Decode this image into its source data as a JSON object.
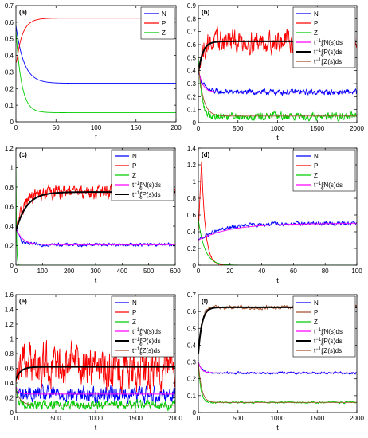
{
  "chart_data": [
    {
      "panel": "(a)",
      "type": "line",
      "xlabel": "t",
      "xlim": [
        0,
        200
      ],
      "ylim": [
        0,
        0.7
      ],
      "xticks": [
        0,
        50,
        100,
        150,
        200
      ],
      "yticks": [
        0,
        0.1,
        0.2,
        0.3,
        0.4,
        0.5,
        0.6,
        0.7
      ],
      "legend_position": "top-right",
      "series": [
        {
          "name": "N",
          "color": "#0000ff",
          "style": "smooth",
          "start": 0.58,
          "end": 0.232,
          "tau": 10
        },
        {
          "name": "P",
          "color": "#ff0000",
          "style": "smooth",
          "start": 0.36,
          "end": 0.625,
          "tau": 8,
          "dip_end": 3
        },
        {
          "name": "Z",
          "color": "#00cc00",
          "style": "smooth",
          "start": 0.55,
          "end": 0.055,
          "tau": 7
        }
      ]
    },
    {
      "panel": "(b)",
      "type": "line",
      "xlabel": "t",
      "xlim": [
        0,
        2000
      ],
      "ylim": [
        0,
        0.9
      ],
      "xticks": [
        0,
        500,
        1000,
        1500,
        2000
      ],
      "yticks": [
        0,
        0.1,
        0.2,
        0.3,
        0.4,
        0.5,
        0.6,
        0.7,
        0.8,
        0.9
      ],
      "legend_position": "top-right",
      "series": [
        {
          "name": "N",
          "color": "#0000ff",
          "style": "noisy",
          "start": 0.4,
          "end": 0.235,
          "tau": 60,
          "noise": 0.018
        },
        {
          "name": "P",
          "color": "#ff0000",
          "style": "noisy",
          "start": 0.4,
          "end": 0.625,
          "tau": 50,
          "noise": 0.07
        },
        {
          "name": "Z",
          "color": "#00cc00",
          "style": "noisy",
          "start": 0.5,
          "end": 0.05,
          "tau": 40,
          "noise": 0.025
        },
        {
          "name": "t^{-1}∫_0^t N(s)ds",
          "color": "#ff00ff",
          "style": "smooth",
          "start": 0.42,
          "end": 0.235,
          "tau": 50
        },
        {
          "name": "t^{-1}∫_0^t P(s)ds",
          "color": "#000000",
          "style": "smooth",
          "start": 0.38,
          "end": 0.625,
          "tau": 55,
          "width": 2
        },
        {
          "name": "t^{-1}∫_0^t Z(s)ds",
          "color": "#a0522d",
          "style": "smooth",
          "start": 0.45,
          "end": 0.05,
          "tau": 60
        }
      ]
    },
    {
      "panel": "(c)",
      "type": "line",
      "xlabel": "t",
      "xlim": [
        0,
        600
      ],
      "ylim": [
        0,
        1.2
      ],
      "xticks": [
        0,
        100,
        200,
        300,
        400,
        500,
        600
      ],
      "yticks": [
        0,
        0.2,
        0.4,
        0.6,
        0.8,
        1,
        1.2
      ],
      "legend_position": "top-right",
      "series": [
        {
          "name": "N",
          "color": "#0000ff",
          "style": "noisy",
          "start": 0.4,
          "end": 0.21,
          "tau": 15,
          "noise": 0.015
        },
        {
          "name": "P",
          "color": "#ff0000",
          "style": "noisy",
          "start": 0.35,
          "end": 0.75,
          "tau": 30,
          "noise": 0.06
        },
        {
          "name": "Z",
          "color": "#00cc00",
          "style": "smooth",
          "start": 1.05,
          "end": 0.0,
          "tau": 2
        },
        {
          "name": "t^{-1}∫_0^t N(s)ds",
          "color": "#ff00ff",
          "style": "smooth",
          "start": 0.38,
          "end": 0.21,
          "tau": 25
        },
        {
          "name": "t^{-1}∫_0^t P(s)ds",
          "color": "#000000",
          "style": "smooth",
          "start": 0.35,
          "end": 0.75,
          "tau": 40,
          "width": 2
        }
      ]
    },
    {
      "panel": "(d)",
      "type": "line",
      "xlabel": "t",
      "xlim": [
        0,
        100
      ],
      "ylim": [
        0,
        1.4
      ],
      "xticks": [
        0,
        20,
        40,
        60,
        80,
        100
      ],
      "yticks": [
        0,
        0.2,
        0.4,
        0.6,
        0.8,
        1,
        1.2,
        1.4
      ],
      "legend_position": "top-right",
      "series": [
        {
          "name": "N",
          "color": "#0000ff",
          "style": "noisy",
          "start": 0.3,
          "end": 0.5,
          "tau": 15,
          "noise": 0.02
        },
        {
          "name": "P",
          "color": "#ff0000",
          "style": "spike",
          "start": 0.4,
          "end": 0.0,
          "tau": 2,
          "peak": 1.25
        },
        {
          "name": "Z",
          "color": "#00cc00",
          "style": "smooth",
          "start": 0.55,
          "end": 0.0,
          "tau": 4
        },
        {
          "name": "t^{-1}∫_0^t N(s)ds",
          "color": "#ff00ff",
          "style": "smooth",
          "start": 0.3,
          "end": 0.5,
          "tau": 20
        }
      ]
    },
    {
      "panel": "(e)",
      "type": "line",
      "xlabel": "t",
      "xlim": [
        0,
        2000
      ],
      "ylim": [
        0,
        1.6
      ],
      "xticks": [
        0,
        500,
        1000,
        1500,
        2000
      ],
      "yticks": [
        0,
        0.2,
        0.4,
        0.6,
        0.8,
        1,
        1.2,
        1.4,
        1.6
      ],
      "legend_position": "top-right",
      "series": [
        {
          "name": "N",
          "color": "#0000ff",
          "style": "noisy",
          "start": 0.3,
          "end": 0.25,
          "tau": 20,
          "noise": 0.09
        },
        {
          "name": "P",
          "color": "#ff0000",
          "style": "noisy",
          "start": 0.4,
          "end": 0.62,
          "tau": 20,
          "noise": 0.25
        },
        {
          "name": "Z",
          "color": "#00cc00",
          "style": "noisy",
          "start": 0.4,
          "end": 0.1,
          "tau": 20,
          "noise": 0.05
        },
        {
          "name": "t^{-1}∫_0^t N(s)ds",
          "color": "#ff00ff",
          "style": "smooth",
          "start": 0.35,
          "end": 0.25,
          "tau": 40
        },
        {
          "name": "t^{-1}∫_0^t P(s)ds",
          "color": "#000000",
          "style": "smooth",
          "start": 0.45,
          "end": 0.62,
          "tau": 60,
          "width": 2
        },
        {
          "name": "t^{-1}∫_0^t Z(s)ds",
          "color": "#a0522d",
          "style": "smooth",
          "start": 0.3,
          "end": 0.1,
          "tau": 60
        }
      ]
    },
    {
      "panel": "(f)",
      "type": "line",
      "xlabel": "t",
      "xlim": [
        0,
        2000
      ],
      "ylim": [
        0,
        0.7
      ],
      "xticks": [
        0,
        500,
        1000,
        1500,
        2000
      ],
      "yticks": [
        0,
        0.1,
        0.2,
        0.3,
        0.4,
        0.5,
        0.6,
        0.7
      ],
      "legend_position": "top-right",
      "series": [
        {
          "name": "N",
          "color": "#0000ff",
          "style": "noisy",
          "start": 0.3,
          "end": 0.235,
          "tau": 40,
          "noise": 0.006
        },
        {
          "name": "P",
          "color": "#a0522d",
          "style": "noisy",
          "start": 0.35,
          "end": 0.625,
          "tau": 40,
          "noise": 0.01
        },
        {
          "name": "Z",
          "color": "#00cc00",
          "style": "noisy",
          "start": 0.3,
          "end": 0.06,
          "tau": 30,
          "noise": 0.005
        },
        {
          "name": "t^{-1}∫_0^t N(s)ds",
          "color": "#ff00ff",
          "style": "smooth",
          "start": 0.3,
          "end": 0.235,
          "tau": 40
        },
        {
          "name": "t^{-1}∫_0^t P(s)ds",
          "color": "#000000",
          "style": "smooth",
          "start": 0.35,
          "end": 0.625,
          "tau": 45,
          "width": 2
        },
        {
          "name": "t^{-1}∫_0^t Z(s)ds",
          "color": "#a0522d",
          "style": "smooth",
          "start": 0.3,
          "end": 0.06,
          "tau": 40
        }
      ]
    }
  ]
}
